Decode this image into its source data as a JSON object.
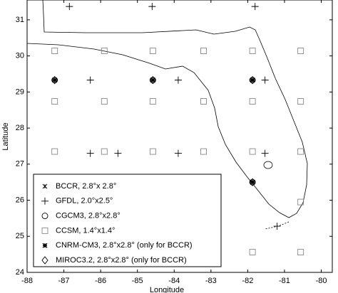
{
  "chart_data": {
    "type": "scatter",
    "x_label": "Longitude",
    "y_label": "Latitude",
    "xlim": [
      -88,
      -79.7
    ],
    "ylim": [
      24,
      31.55
    ],
    "xticks": [
      -88,
      -87,
      -86,
      -85,
      -84,
      -83,
      -82,
      -81,
      -80
    ],
    "yticks": [
      24,
      25,
      26,
      27,
      28,
      29,
      30,
      31
    ],
    "series": [
      {
        "name": "BCCR, 2.8°x 2.8°",
        "marker": "xstar",
        "color": "#000",
        "x": [
          -87.25,
          -84.58,
          -81.87,
          -81.87
        ],
        "values": [
          29.33,
          29.33,
          29.33,
          26.5
        ]
      },
      {
        "name": "GFDL, 2.0°x2.5°",
        "marker": "plus",
        "color": "#000",
        "x": [
          -86.85,
          -84.6,
          -81.8,
          -86.28,
          -83.89,
          -81.53,
          -86.28,
          -83.89,
          -81.53,
          -81.2,
          -85.53
        ],
        "values": [
          31.37,
          31.37,
          31.37,
          29.33,
          29.33,
          29.33,
          27.3,
          27.3,
          27.3,
          25.28,
          27.3
        ]
      },
      {
        "name": "CGCM3, 2.8°x2.8°",
        "marker": "circle",
        "color": "#000",
        "x": [
          -87.25,
          -84.58,
          -81.87,
          -81.87
        ],
        "values": [
          29.33,
          29.33,
          29.33,
          26.5
        ]
      },
      {
        "name": "CCSM, 1.4°x1.4°",
        "marker": "square",
        "color": "#888",
        "x": [
          -87.25,
          -85.9,
          -84.58,
          -83.2,
          -81.87,
          -80.56,
          -87.25,
          -85.9,
          -84.58,
          -83.2,
          -81.87,
          -80.56,
          -87.25,
          -85.9,
          -84.58,
          -83.2,
          -81.87,
          -80.56,
          -80.56,
          -81.87,
          -80.56
        ],
        "values": [
          30.14,
          30.14,
          30.14,
          30.14,
          30.14,
          30.14,
          28.74,
          28.74,
          28.74,
          28.74,
          28.74,
          28.74,
          27.35,
          27.35,
          27.35,
          27.35,
          27.35,
          27.35,
          25.95,
          24.56,
          24.56
        ]
      },
      {
        "name": "CNRM-CM3, 2.8°x2.8° (only for BCCR)",
        "marker": "star",
        "color": "#000",
        "x": [
          -87.25,
          -84.58,
          -81.87,
          -81.87
        ],
        "values": [
          29.33,
          29.33,
          29.33,
          26.5
        ]
      },
      {
        "name": "MIROC3.2, 2.8°x2.8° (only for BCCR)",
        "marker": "diamond",
        "color": "#000",
        "x": [
          -87.25,
          -84.58,
          -81.87,
          -81.87
        ],
        "values": [
          29.33,
          29.33,
          29.33,
          26.5
        ]
      }
    ]
  }
}
